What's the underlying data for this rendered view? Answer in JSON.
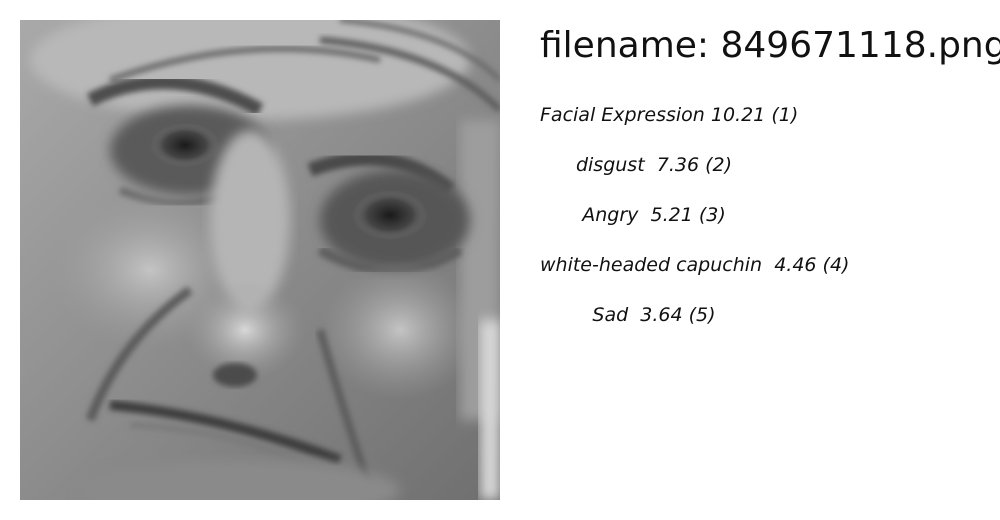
{
  "filename": "filename: 849671118.png",
  "predictions": [
    {
      "label": "Facial Expression",
      "score": "10.21",
      "rank": "(1)"
    },
    {
      "label": "disgust",
      "score": "7.36",
      "rank": "(2)"
    },
    {
      "label": "Angry",
      "score": "5.21",
      "rank": "(3)"
    },
    {
      "label": "white-headed capuchin",
      "score": "4.46",
      "rank": "(4)"
    },
    {
      "label": "Sad",
      "score": "3.64",
      "rank": "(5)"
    }
  ],
  "image": {
    "subject": "grayscale close-up face",
    "tone_dark": "#2b2b2b",
    "tone_mid": "#8f8f8f",
    "tone_light": "#d4d4d4"
  }
}
